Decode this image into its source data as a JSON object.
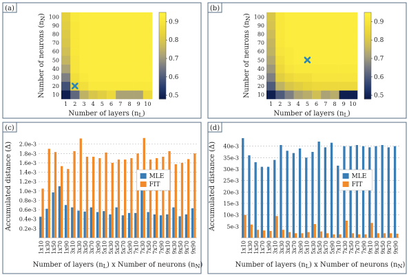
{
  "colors": {
    "colormap": [
      "#0b1a4a",
      "#243a6e",
      "#4d5a7b",
      "#7b7d83",
      "#a8a179",
      "#cdbd58",
      "#e6d23b",
      "#f6e23b",
      "#fff13f"
    ],
    "marker": "#2b86b5",
    "mle": "#3a7db5",
    "fit": "#f08a2b",
    "frame": "#556b86"
  },
  "chart_data": [
    {
      "panel": "(a)",
      "type": "heatmap",
      "xlabel": "Number of layers (n",
      "xlabel_sub": "L",
      "ylabel": "Number of neurons (n",
      "ylabel_sub": "N",
      "x_ticks": [
        "1",
        "2",
        "3",
        "4",
        "5",
        "6",
        "7",
        "8",
        "9",
        "10"
      ],
      "y_ticks": [
        "10",
        "20",
        "30",
        "40",
        "50",
        "60",
        "70",
        "80",
        "90",
        "100"
      ],
      "colorbar_ticks": [
        "0.9",
        "0.8",
        "0.7",
        "0.6",
        "0.5"
      ],
      "colorbar_range": [
        0.48,
        0.95
      ],
      "marker": {
        "x": 2,
        "y": 20
      },
      "values_rows_bottom_to_top": [
        [
          0.49,
          0.62,
          0.75,
          0.8,
          0.82,
          0.86,
          0.72,
          0.72,
          0.72,
          0.86
        ],
        [
          0.58,
          0.85,
          0.88,
          0.92,
          0.92,
          0.92,
          0.92,
          0.92,
          0.92,
          0.92
        ],
        [
          0.66,
          0.88,
          0.92,
          0.93,
          0.93,
          0.93,
          0.93,
          0.93,
          0.93,
          0.93
        ],
        [
          0.72,
          0.9,
          0.93,
          0.93,
          0.93,
          0.93,
          0.93,
          0.93,
          0.93,
          0.93
        ],
        [
          0.76,
          0.9,
          0.93,
          0.93,
          0.93,
          0.93,
          0.93,
          0.93,
          0.93,
          0.93
        ],
        [
          0.78,
          0.91,
          0.93,
          0.93,
          0.93,
          0.93,
          0.93,
          0.93,
          0.93,
          0.93
        ],
        [
          0.8,
          0.91,
          0.93,
          0.93,
          0.93,
          0.93,
          0.93,
          0.93,
          0.93,
          0.93
        ],
        [
          0.81,
          0.91,
          0.93,
          0.93,
          0.93,
          0.93,
          0.93,
          0.93,
          0.93,
          0.93
        ],
        [
          0.82,
          0.91,
          0.93,
          0.93,
          0.93,
          0.93,
          0.93,
          0.93,
          0.93,
          0.93
        ],
        [
          0.83,
          0.92,
          0.93,
          0.93,
          0.93,
          0.93,
          0.93,
          0.93,
          0.93,
          0.93
        ]
      ]
    },
    {
      "panel": "(b)",
      "type": "heatmap",
      "xlabel": "Number of layers (n",
      "xlabel_sub": "L",
      "ylabel": "Number of neurons (n",
      "ylabel_sub": "N",
      "x_ticks": [
        "1",
        "2",
        "3",
        "4",
        "5",
        "6",
        "7",
        "8",
        "9",
        "10"
      ],
      "y_ticks": [
        "10",
        "20",
        "30",
        "40",
        "50",
        "60",
        "70",
        "80",
        "90",
        "100"
      ],
      "colorbar_ticks": [
        "0.9",
        "0.8",
        "0.7",
        "0.6",
        "0.5"
      ],
      "colorbar_range": [
        0.48,
        0.95
      ],
      "marker": {
        "x": 5,
        "y": 50
      },
      "values_rows_bottom_to_top": [
        [
          0.49,
          0.6,
          0.66,
          0.72,
          0.74,
          0.78,
          0.72,
          0.74,
          0.49,
          0.49
        ],
        [
          0.6,
          0.75,
          0.8,
          0.82,
          0.84,
          0.86,
          0.86,
          0.86,
          0.86,
          0.86
        ],
        [
          0.66,
          0.82,
          0.86,
          0.88,
          0.88,
          0.9,
          0.9,
          0.9,
          0.9,
          0.9
        ],
        [
          0.7,
          0.86,
          0.9,
          0.92,
          0.92,
          0.92,
          0.92,
          0.92,
          0.92,
          0.92
        ],
        [
          0.73,
          0.88,
          0.92,
          0.93,
          0.93,
          0.93,
          0.93,
          0.93,
          0.93,
          0.93
        ],
        [
          0.75,
          0.9,
          0.92,
          0.93,
          0.93,
          0.93,
          0.93,
          0.93,
          0.93,
          0.93
        ],
        [
          0.76,
          0.91,
          0.93,
          0.93,
          0.93,
          0.93,
          0.93,
          0.93,
          0.93,
          0.93
        ],
        [
          0.77,
          0.91,
          0.93,
          0.93,
          0.93,
          0.93,
          0.93,
          0.93,
          0.93,
          0.93
        ],
        [
          0.79,
          0.91,
          0.93,
          0.93,
          0.93,
          0.93,
          0.93,
          0.93,
          0.93,
          0.93
        ],
        [
          0.8,
          0.91,
          0.93,
          0.93,
          0.93,
          0.93,
          0.93,
          0.93,
          0.93,
          0.93
        ]
      ]
    },
    {
      "panel": "(c)",
      "type": "bar",
      "xlabel": "Number of layers (n",
      "xlabel_sub1": "L",
      "xlabel_mid": ") x Number of neurons (n",
      "xlabel_sub2": "N",
      "ylabel": "Accumulated distance (Δ)",
      "ylim": [
        0,
        2.2
      ],
      "y_ticks": [
        {
          "v": 0.2,
          "label": "0.2e-3"
        },
        {
          "v": 0.4,
          "label": "0.4e-3"
        },
        {
          "v": 0.6,
          "label": "0.6e-3"
        },
        {
          "v": 0.8,
          "label": "0.8e-3"
        },
        {
          "v": 1.0,
          "label": "1.0e-3"
        },
        {
          "v": 1.2,
          "label": "1.2e-3"
        },
        {
          "v": 1.4,
          "label": "1.4e-3"
        },
        {
          "v": 1.6,
          "label": "1.6e-3"
        },
        {
          "v": 1.8,
          "label": "1.8e-3"
        },
        {
          "v": 2.0,
          "label": "2.0e-3"
        }
      ],
      "categories": [
        "1x10",
        "1x30",
        "1x50",
        "1x70",
        "1x90",
        "3x10",
        "3x30",
        "3x50",
        "3x70",
        "3x90",
        "5x10",
        "5x30",
        "5x50",
        "5x70",
        "5x90",
        "7x10",
        "7x30",
        "7x50",
        "7x70",
        "7x90",
        "9x10",
        "9x30",
        "9x50",
        "9x70",
        "9x90"
      ],
      "category_labels_shown": [
        "1x10",
        "1x30",
        "1x50",
        "1x70",
        "1x90",
        "3x10",
        "3x30",
        "3x50",
        "3x70",
        "3x90",
        "5x10",
        "5x30",
        "5x50",
        "5x70",
        "5x90",
        "7x10",
        "7x30",
        "7x50",
        "7x70",
        "7x90",
        "9x10",
        "9x30",
        "9x50",
        "9x70",
        "9x90"
      ],
      "series": [
        {
          "name": "MLE",
          "values": [
            0.45,
            0.62,
            0.97,
            1.1,
            0.7,
            0.65,
            0.58,
            0.56,
            0.65,
            0.55,
            0.57,
            0.5,
            0.65,
            0.48,
            0.53,
            0.53,
            1.2,
            0.55,
            0.5,
            0.48,
            0.5,
            0.65,
            0.46,
            0.5,
            0.63
          ]
        },
        {
          "name": "FIT",
          "values": [
            1.05,
            1.9,
            1.83,
            1.53,
            1.47,
            1.85,
            2.12,
            1.73,
            1.73,
            1.7,
            1.82,
            1.6,
            1.67,
            1.67,
            1.7,
            1.8,
            2.13,
            1.67,
            1.7,
            1.73,
            1.85,
            1.57,
            1.6,
            1.68,
            1.8
          ]
        }
      ],
      "legend": "right"
    },
    {
      "panel": "(d)",
      "type": "bar",
      "xlabel": "Number of layers (n",
      "xlabel_sub1": "L",
      "xlabel_mid": ") x Number of neurons (n",
      "xlabel_sub2": "N",
      "ylabel": "Accumulated distance (Δ)",
      "ylim": [
        0,
        45
      ],
      "y_ticks": [
        {
          "v": 5,
          "label": "5e-3"
        },
        {
          "v": 10,
          "label": "10e-3"
        },
        {
          "v": 15,
          "label": "15e-3"
        },
        {
          "v": 20,
          "label": "20e-3"
        },
        {
          "v": 25,
          "label": "25e-3"
        },
        {
          "v": 30,
          "label": "30e-3"
        },
        {
          "v": 35,
          "label": "35e-3"
        },
        {
          "v": 40,
          "label": "40e-3"
        }
      ],
      "categories": [
        "1x10",
        "1x30",
        "1x50",
        "1x70",
        "1x90",
        "3x10",
        "3x30",
        "3x50",
        "3x70",
        "3x90",
        "5x10",
        "5x30",
        "5x50",
        "5x70",
        "5x90",
        "7x10",
        "7x30",
        "7x50",
        "7x70",
        "7x90",
        "9x10",
        "9x30",
        "9x50",
        "9x70",
        "9x90"
      ],
      "category_labels_shown": [
        "1x10",
        "1x30",
        "1x50",
        "1x70",
        "1x90",
        "3x10",
        "3x30",
        "3x50",
        "3x70",
        "3x90",
        "5x10",
        "5x30",
        "5x50",
        "5x70",
        "5x90",
        "7x10",
        "7x30",
        "7x50",
        "7x70",
        "7x90",
        "9x10",
        "9x30",
        "9x50",
        "9x70",
        "9x90"
      ],
      "series": [
        {
          "name": "MLE",
          "values": [
            43.5,
            36,
            33,
            31,
            31,
            34,
            40.5,
            38,
            37,
            39,
            35,
            37.5,
            42,
            39.5,
            41.5,
            31.5,
            40,
            40,
            40.5,
            40,
            39.5,
            40,
            40.5,
            39.5,
            40
          ]
        },
        {
          "name": "FIT",
          "values": [
            10,
            5.8,
            3.5,
            3.2,
            3.0,
            9.5,
            3.5,
            2.5,
            2.0,
            2.0,
            2.5,
            6.0,
            2.8,
            2.0,
            1.5,
            1.5,
            7.5,
            2.0,
            1.5,
            1.5,
            6.5,
            2.0,
            2.0,
            2.0,
            1.8
          ]
        }
      ],
      "legend": "right"
    }
  ]
}
